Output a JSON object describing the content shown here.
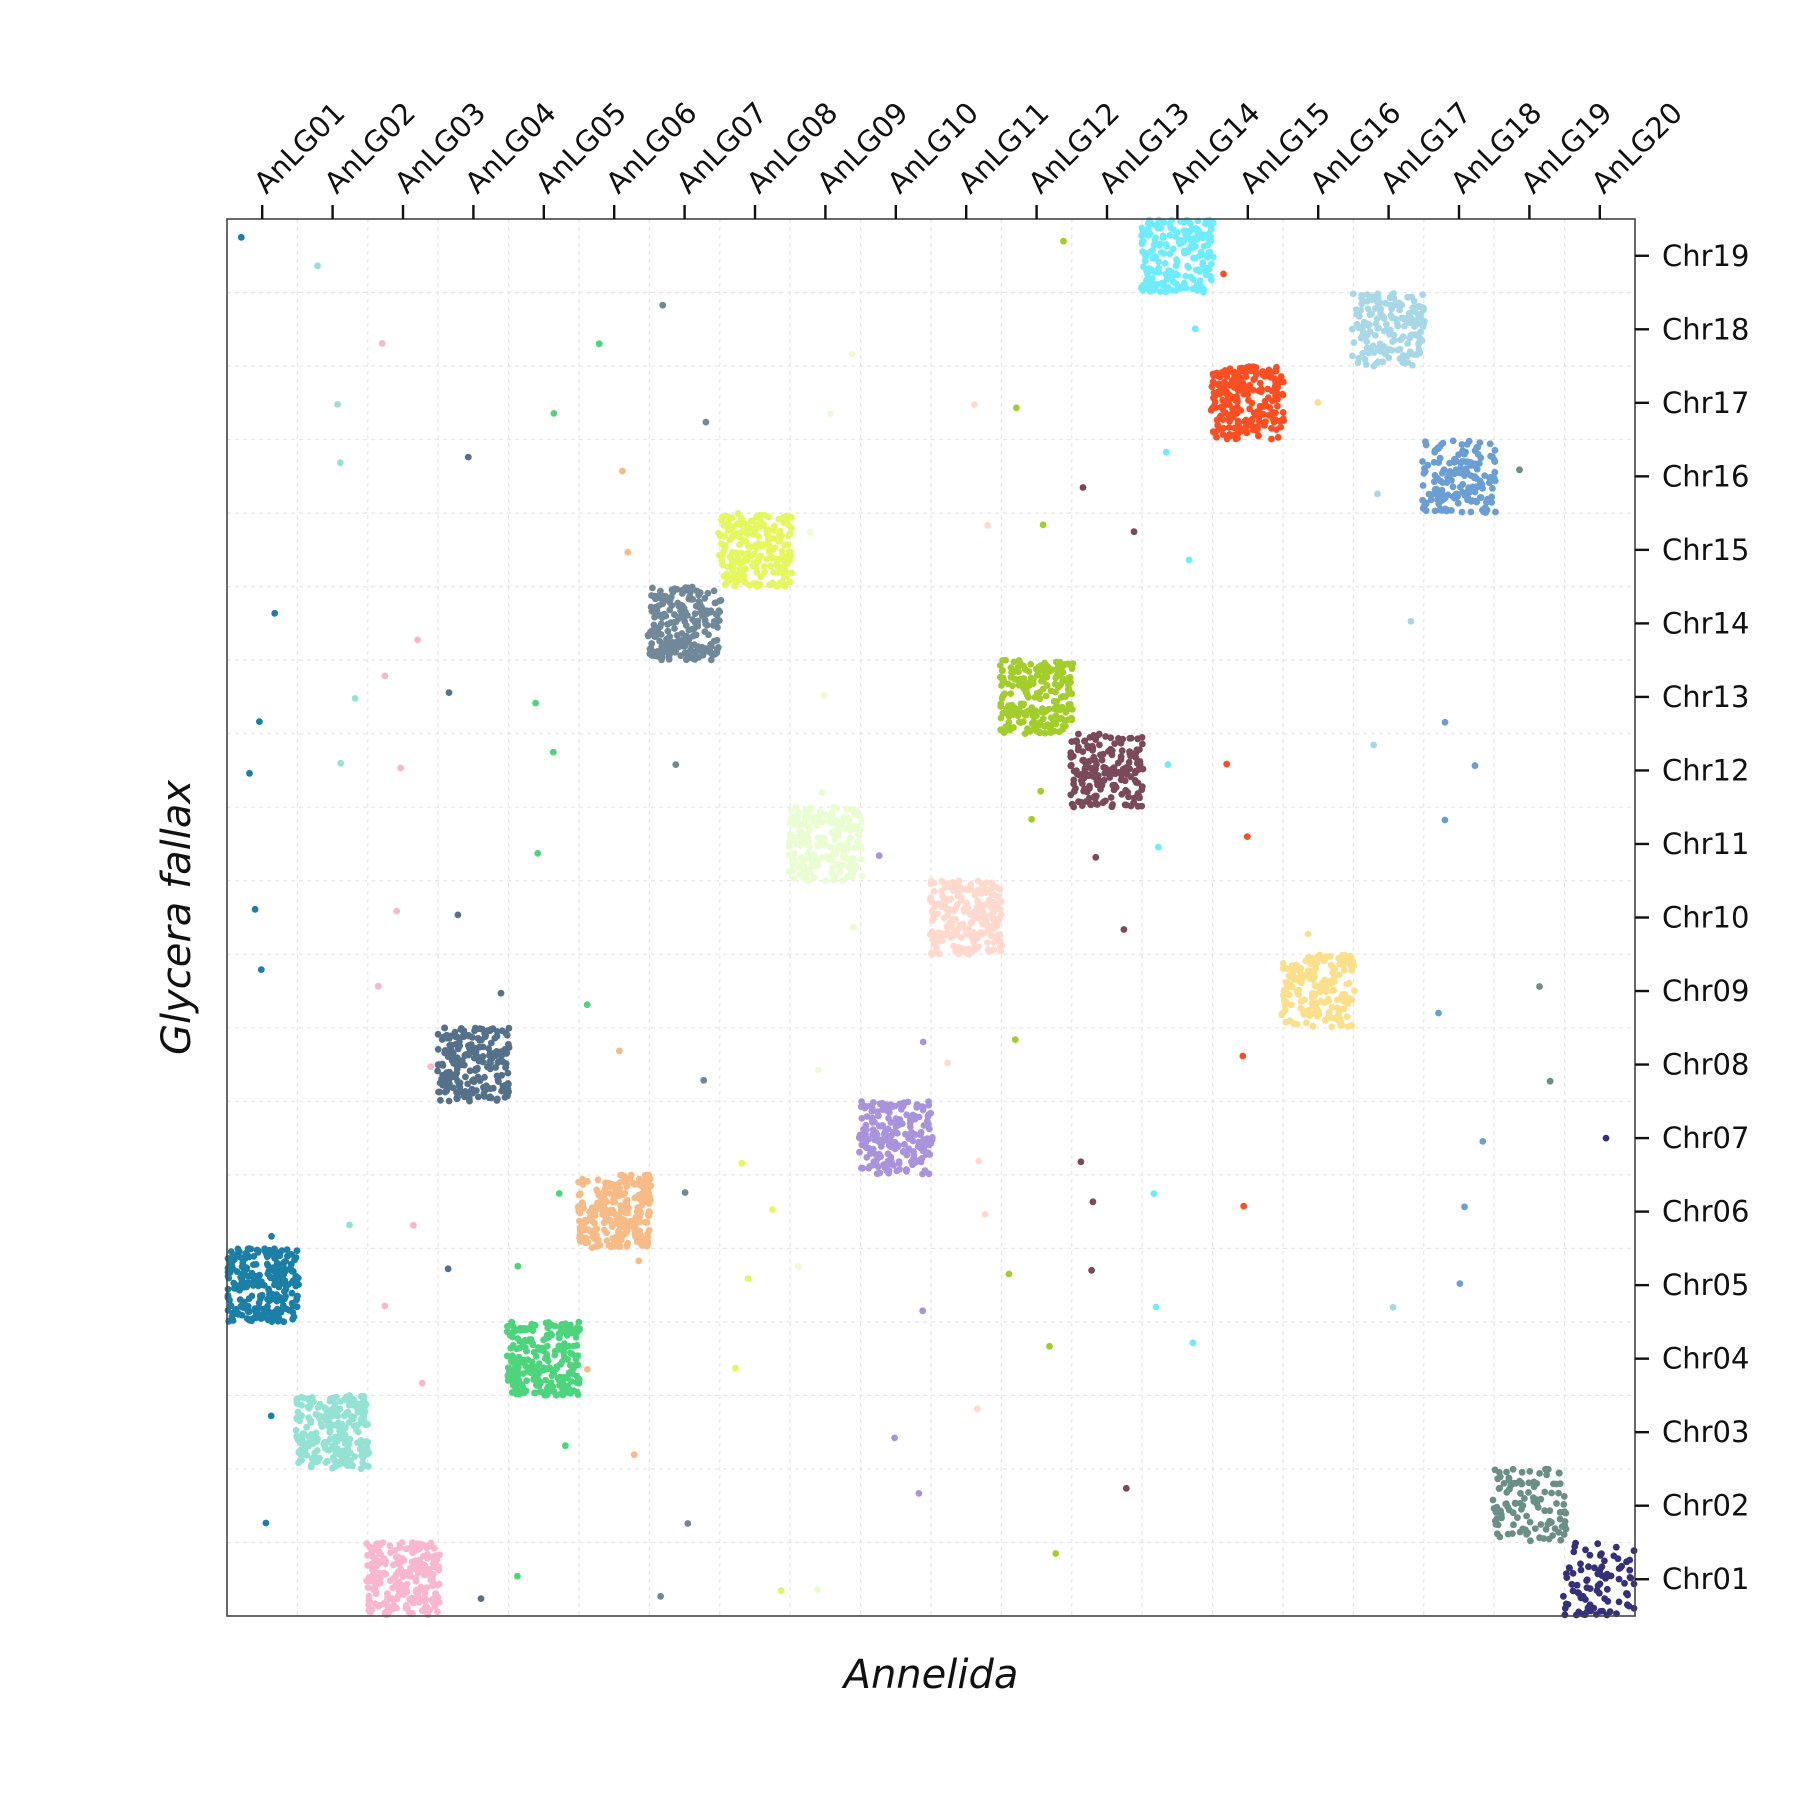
{
  "chart_data": {
    "type": "scatter",
    "title": "",
    "xlabel": "Annelida",
    "ylabel": "Glycera fallax",
    "x_axis_position": "top",
    "y_axis_position": "right",
    "grid": true,
    "legend": "none",
    "x_categories": [
      "AnLG01",
      "AnLG02",
      "AnLG03",
      "AnLG04",
      "AnLG05",
      "AnLG06",
      "AnLG07",
      "AnLG08",
      "AnLG09",
      "AnLG10",
      "AnLG11",
      "AnLG12",
      "AnLG13",
      "AnLG14",
      "AnLG15",
      "AnLG16",
      "AnLG17",
      "AnLG18",
      "AnLG19",
      "AnLG20"
    ],
    "y_categories": [
      "Chr01",
      "Chr02",
      "Chr03",
      "Chr04",
      "Chr05",
      "Chr06",
      "Chr07",
      "Chr08",
      "Chr09",
      "Chr10",
      "Chr11",
      "Chr12",
      "Chr13",
      "Chr14",
      "Chr15",
      "Chr16",
      "Chr17",
      "Chr18",
      "Chr19"
    ],
    "blocks": [
      {
        "x": "AnLG01",
        "y": "Chr05",
        "color": "#1b7fa6",
        "density": 260
      },
      {
        "x": "AnLG02",
        "y": "Chr03",
        "color": "#94e2d4",
        "density": 240
      },
      {
        "x": "AnLG03",
        "y": "Chr01",
        "color": "#f8b6cf",
        "density": 240
      },
      {
        "x": "AnLG04",
        "y": "Chr08",
        "color": "#55718a",
        "density": 220
      },
      {
        "x": "AnLG05",
        "y": "Chr04",
        "color": "#4dd47c",
        "density": 240
      },
      {
        "x": "AnLG06",
        "y": "Chr06",
        "color": "#f6bb86",
        "density": 240
      },
      {
        "x": "AnLG07",
        "y": "Chr14",
        "color": "#718899",
        "density": 220
      },
      {
        "x": "AnLG08",
        "y": "Chr15",
        "color": "#e4f75c",
        "density": 220
      },
      {
        "x": "AnLG09",
        "y": "Chr11",
        "color": "#eafdd2",
        "density": 220
      },
      {
        "x": "AnLG10",
        "y": "Chr07",
        "color": "#a994dc",
        "density": 200
      },
      {
        "x": "AnLG11",
        "y": "Chr10",
        "color": "#ffd9cd",
        "density": 220
      },
      {
        "x": "AnLG12",
        "y": "Chr13",
        "color": "#a3cd2a",
        "density": 220
      },
      {
        "x": "AnLG13",
        "y": "Chr12",
        "color": "#7b4a5a",
        "density": 180
      },
      {
        "x": "AnLG14",
        "y": "Chr19",
        "color": "#6fecfb",
        "density": 200
      },
      {
        "x": "AnLG15",
        "y": "Chr17",
        "color": "#fb4e23",
        "density": 220
      },
      {
        "x": "AnLG16",
        "y": "Chr09",
        "color": "#fbe08c",
        "density": 180
      },
      {
        "x": "AnLG17",
        "y": "Chr18",
        "color": "#a8d8e6",
        "density": 170
      },
      {
        "x": "AnLG18",
        "y": "Chr16",
        "color": "#6b9fd4",
        "density": 170
      },
      {
        "x": "AnLG19",
        "y": "Chr02",
        "color": "#6b8f86",
        "density": 110
      },
      {
        "x": "AnLG20",
        "y": "Chr01",
        "color": "#35307a",
        "density": 90
      }
    ],
    "outliers": [
      {
        "x": "AnLG01",
        "y": "Chr19",
        "color": "#1b7fa6"
      },
      {
        "x": "AnLG01",
        "y": "Chr14",
        "color": "#1b7fa6"
      },
      {
        "x": "AnLG01",
        "y": "Chr13",
        "color": "#1b7fa6"
      },
      {
        "x": "AnLG01",
        "y": "Chr12",
        "color": "#1b7fa6"
      },
      {
        "x": "AnLG01",
        "y": "Chr10",
        "color": "#1b7fa6"
      },
      {
        "x": "AnLG01",
        "y": "Chr09",
        "color": "#1b7fa6"
      },
      {
        "x": "AnLG01",
        "y": "Chr06",
        "color": "#1b7fa6"
      },
      {
        "x": "AnLG01",
        "y": "Chr03",
        "color": "#1b7fa6"
      },
      {
        "x": "AnLG01",
        "y": "Chr02",
        "color": "#1b7fa6"
      },
      {
        "x": "AnLG02",
        "y": "Chr19",
        "color": "#94e2d4"
      },
      {
        "x": "AnLG02",
        "y": "Chr17",
        "color": "#94e2d4"
      },
      {
        "x": "AnLG02",
        "y": "Chr16",
        "color": "#94e2d4"
      },
      {
        "x": "AnLG02",
        "y": "Chr13",
        "color": "#94e2d4"
      },
      {
        "x": "AnLG02",
        "y": "Chr12",
        "color": "#94e2d4"
      },
      {
        "x": "AnLG02",
        "y": "Chr06",
        "color": "#94e2d4"
      },
      {
        "x": "AnLG03",
        "y": "Chr18",
        "color": "#f8b6cf"
      },
      {
        "x": "AnLG03",
        "y": "Chr14",
        "color": "#f8b6cf"
      },
      {
        "x": "AnLG03",
        "y": "Chr13",
        "color": "#f8b6cf"
      },
      {
        "x": "AnLG03",
        "y": "Chr12",
        "color": "#f8b6cf"
      },
      {
        "x": "AnLG03",
        "y": "Chr10",
        "color": "#f8b6cf"
      },
      {
        "x": "AnLG03",
        "y": "Chr09",
        "color": "#f8b6cf"
      },
      {
        "x": "AnLG03",
        "y": "Chr08",
        "color": "#f8b6cf"
      },
      {
        "x": "AnLG03",
        "y": "Chr06",
        "color": "#f8b6cf"
      },
      {
        "x": "AnLG03",
        "y": "Chr05",
        "color": "#f8b6cf"
      },
      {
        "x": "AnLG03",
        "y": "Chr04",
        "color": "#f8b6cf"
      },
      {
        "x": "AnLG04",
        "y": "Chr16",
        "color": "#55718a"
      },
      {
        "x": "AnLG04",
        "y": "Chr13",
        "color": "#55718a"
      },
      {
        "x": "AnLG04",
        "y": "Chr10",
        "color": "#55718a"
      },
      {
        "x": "AnLG04",
        "y": "Chr09",
        "color": "#55718a"
      },
      {
        "x": "AnLG04",
        "y": "Chr05",
        "color": "#55718a"
      },
      {
        "x": "AnLG04",
        "y": "Chr01",
        "color": "#55718a"
      },
      {
        "x": "AnLG05",
        "y": "Chr17",
        "color": "#4dd47c"
      },
      {
        "x": "AnLG05",
        "y": "Chr13",
        "color": "#4dd47c"
      },
      {
        "x": "AnLG05",
        "y": "Chr12",
        "color": "#4dd47c"
      },
      {
        "x": "AnLG05",
        "y": "Chr11",
        "color": "#4dd47c"
      },
      {
        "x": "AnLG05",
        "y": "Chr06",
        "color": "#4dd47c"
      },
      {
        "x": "AnLG05",
        "y": "Chr05",
        "color": "#4dd47c"
      },
      {
        "x": "AnLG05",
        "y": "Chr03",
        "color": "#4dd47c"
      },
      {
        "x": "AnLG05",
        "y": "Chr01",
        "color": "#4dd47c"
      },
      {
        "x": "AnLG06",
        "y": "Chr18",
        "color": "#4dd47c"
      },
      {
        "x": "AnLG06",
        "y": "Chr09",
        "color": "#4dd47c"
      },
      {
        "x": "AnLG06",
        "y": "Chr16",
        "color": "#f6bb86"
      },
      {
        "x": "AnLG06",
        "y": "Chr15",
        "color": "#f6bb86"
      },
      {
        "x": "AnLG06",
        "y": "Chr08",
        "color": "#f6bb86"
      },
      {
        "x": "AnLG06",
        "y": "Chr05",
        "color": "#f6bb86"
      },
      {
        "x": "AnLG06",
        "y": "Chr04",
        "color": "#f6bb86"
      },
      {
        "x": "AnLG06",
        "y": "Chr03",
        "color": "#f6bb86"
      },
      {
        "x": "AnLG07",
        "y": "Chr18",
        "color": "#718899"
      },
      {
        "x": "AnLG07",
        "y": "Chr17",
        "color": "#718899"
      },
      {
        "x": "AnLG07",
        "y": "Chr12",
        "color": "#718899"
      },
      {
        "x": "AnLG07",
        "y": "Chr08",
        "color": "#718899"
      },
      {
        "x": "AnLG07",
        "y": "Chr06",
        "color": "#718899"
      },
      {
        "x": "AnLG07",
        "y": "Chr02",
        "color": "#718899"
      },
      {
        "x": "AnLG07",
        "y": "Chr01",
        "color": "#718899"
      },
      {
        "x": "AnLG08",
        "y": "Chr07",
        "color": "#e4f75c"
      },
      {
        "x": "AnLG08",
        "y": "Chr06",
        "color": "#e4f75c"
      },
      {
        "x": "AnLG08",
        "y": "Chr05",
        "color": "#e4f75c"
      },
      {
        "x": "AnLG08",
        "y": "Chr04",
        "color": "#e4f75c"
      },
      {
        "x": "AnLG08",
        "y": "Chr01",
        "color": "#e4f75c"
      },
      {
        "x": "AnLG09",
        "y": "Chr18",
        "color": "#eafdd2"
      },
      {
        "x": "AnLG09",
        "y": "Chr17",
        "color": "#eafdd2"
      },
      {
        "x": "AnLG09",
        "y": "Chr15",
        "color": "#eafdd2"
      },
      {
        "x": "AnLG09",
        "y": "Chr13",
        "color": "#eafdd2"
      },
      {
        "x": "AnLG09",
        "y": "Chr12",
        "color": "#eafdd2"
      },
      {
        "x": "AnLG09",
        "y": "Chr10",
        "color": "#eafdd2"
      },
      {
        "x": "AnLG09",
        "y": "Chr08",
        "color": "#eafdd2"
      },
      {
        "x": "AnLG09",
        "y": "Chr05",
        "color": "#eafdd2"
      },
      {
        "x": "AnLG09",
        "y": "Chr01",
        "color": "#eafdd2"
      },
      {
        "x": "AnLG10",
        "y": "Chr11",
        "color": "#a994dc"
      },
      {
        "x": "AnLG10",
        "y": "Chr08",
        "color": "#a994dc"
      },
      {
        "x": "AnLG10",
        "y": "Chr05",
        "color": "#a994dc"
      },
      {
        "x": "AnLG10",
        "y": "Chr03",
        "color": "#a994dc"
      },
      {
        "x": "AnLG10",
        "y": "Chr02",
        "color": "#a994dc"
      },
      {
        "x": "AnLG11",
        "y": "Chr17",
        "color": "#ffd9cd"
      },
      {
        "x": "AnLG11",
        "y": "Chr15",
        "color": "#ffd9cd"
      },
      {
        "x": "AnLG11",
        "y": "Chr08",
        "color": "#ffd9cd"
      },
      {
        "x": "AnLG11",
        "y": "Chr07",
        "color": "#ffd9cd"
      },
      {
        "x": "AnLG11",
        "y": "Chr06",
        "color": "#ffd9cd"
      },
      {
        "x": "AnLG11",
        "y": "Chr03",
        "color": "#ffd9cd"
      },
      {
        "x": "AnLG12",
        "y": "Chr19",
        "color": "#a3cd2a"
      },
      {
        "x": "AnLG12",
        "y": "Chr17",
        "color": "#a3cd2a"
      },
      {
        "x": "AnLG12",
        "y": "Chr15",
        "color": "#a3cd2a"
      },
      {
        "x": "AnLG12",
        "y": "Chr12",
        "color": "#a3cd2a"
      },
      {
        "x": "AnLG12",
        "y": "Chr11",
        "color": "#a3cd2a"
      },
      {
        "x": "AnLG12",
        "y": "Chr08",
        "color": "#a3cd2a"
      },
      {
        "x": "AnLG12",
        "y": "Chr05",
        "color": "#a3cd2a"
      },
      {
        "x": "AnLG12",
        "y": "Chr04",
        "color": "#a3cd2a"
      },
      {
        "x": "AnLG12",
        "y": "Chr01",
        "color": "#a3cd2a"
      },
      {
        "x": "AnLG13",
        "y": "Chr16",
        "color": "#7b4a5a"
      },
      {
        "x": "AnLG13",
        "y": "Chr15",
        "color": "#7b4a5a"
      },
      {
        "x": "AnLG13",
        "y": "Chr11",
        "color": "#7b4a5a"
      },
      {
        "x": "AnLG13",
        "y": "Chr10",
        "color": "#7b4a5a"
      },
      {
        "x": "AnLG13",
        "y": "Chr07",
        "color": "#7b4a5a"
      },
      {
        "x": "AnLG13",
        "y": "Chr06",
        "color": "#7b4a5a"
      },
      {
        "x": "AnLG13",
        "y": "Chr05",
        "color": "#7b4a5a"
      },
      {
        "x": "AnLG13",
        "y": "Chr02",
        "color": "#7b4a5a"
      },
      {
        "x": "AnLG14",
        "y": "Chr18",
        "color": "#6fecfb"
      },
      {
        "x": "AnLG14",
        "y": "Chr16",
        "color": "#6fecfb"
      },
      {
        "x": "AnLG14",
        "y": "Chr15",
        "color": "#6fecfb"
      },
      {
        "x": "AnLG14",
        "y": "Chr12",
        "color": "#6fecfb"
      },
      {
        "x": "AnLG14",
        "y": "Chr11",
        "color": "#6fecfb"
      },
      {
        "x": "AnLG14",
        "y": "Chr06",
        "color": "#6fecfb"
      },
      {
        "x": "AnLG14",
        "y": "Chr05",
        "color": "#6fecfb"
      },
      {
        "x": "AnLG14",
        "y": "Chr04",
        "color": "#6fecfb"
      },
      {
        "x": "AnLG15",
        "y": "Chr19",
        "color": "#fb4e23"
      },
      {
        "x": "AnLG15",
        "y": "Chr12",
        "color": "#fb4e23"
      },
      {
        "x": "AnLG15",
        "y": "Chr11",
        "color": "#fb4e23"
      },
      {
        "x": "AnLG15",
        "y": "Chr08",
        "color": "#fb4e23"
      },
      {
        "x": "AnLG15",
        "y": "Chr06",
        "color": "#fb4e23"
      },
      {
        "x": "AnLG16",
        "y": "Chr17",
        "color": "#fbe08c"
      },
      {
        "x": "AnLG16",
        "y": "Chr10",
        "color": "#fbe08c"
      },
      {
        "x": "AnLG17",
        "y": "Chr16",
        "color": "#a8d8e6"
      },
      {
        "x": "AnLG17",
        "y": "Chr14",
        "color": "#a8d8e6"
      },
      {
        "x": "AnLG17",
        "y": "Chr12",
        "color": "#a8d8e6"
      },
      {
        "x": "AnLG17",
        "y": "Chr05",
        "color": "#a8d8e6"
      },
      {
        "x": "AnLG18",
        "y": "Chr13",
        "color": "#6b9fd4"
      },
      {
        "x": "AnLG18",
        "y": "Chr12",
        "color": "#6b9fd4"
      },
      {
        "x": "AnLG18",
        "y": "Chr11",
        "color": "#6b9fd4"
      },
      {
        "x": "AnLG18",
        "y": "Chr09",
        "color": "#6b9fd4"
      },
      {
        "x": "AnLG18",
        "y": "Chr07",
        "color": "#6b9fd4"
      },
      {
        "x": "AnLG18",
        "y": "Chr06",
        "color": "#6b9fd4"
      },
      {
        "x": "AnLG18",
        "y": "Chr05",
        "color": "#6b9fd4"
      },
      {
        "x": "AnLG19",
        "y": "Chr16",
        "color": "#6b8f86"
      },
      {
        "x": "AnLG19",
        "y": "Chr09",
        "color": "#6b8f86"
      },
      {
        "x": "AnLG19",
        "y": "Chr08",
        "color": "#6b8f86"
      },
      {
        "x": "AnLG20",
        "y": "Chr07",
        "color": "#35307a"
      }
    ]
  }
}
